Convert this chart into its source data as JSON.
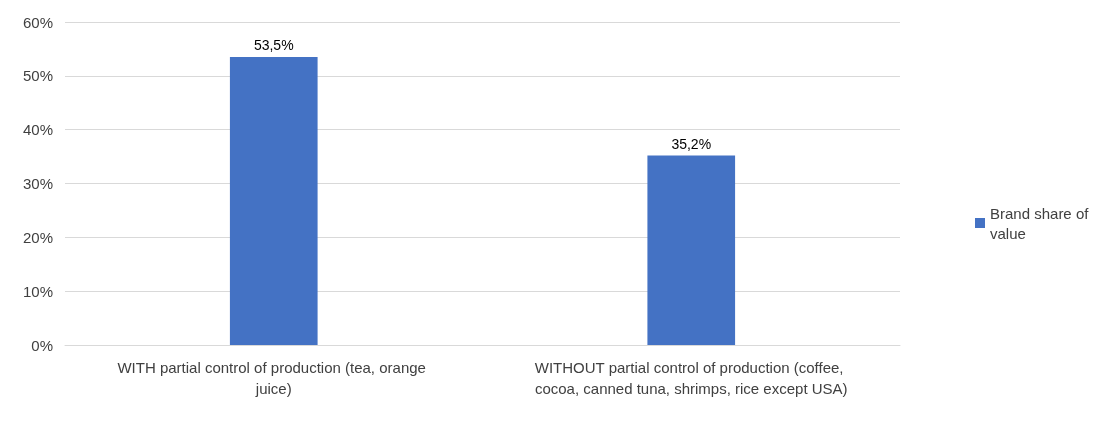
{
  "chart_data": {
    "type": "bar",
    "categories": [
      "WITH partial control of production (tea, orange juice)",
      "WITHOUT partial control of production (coffee, cocoa, canned tuna, shrimps, rice except USA)"
    ],
    "series": [
      {
        "name": "Brand share of value",
        "color": "#4472c4",
        "values": [
          53.5,
          35.2
        ],
        "value_labels": [
          "53,5%",
          "35,2%"
        ]
      }
    ],
    "ylim": [
      0,
      60
    ],
    "yticks": [
      {
        "value": 0,
        "label": "0%"
      },
      {
        "value": 10,
        "label": "10%"
      },
      {
        "value": 20,
        "label": "20%"
      },
      {
        "value": 30,
        "label": "30%"
      },
      {
        "value": 40,
        "label": "40%"
      },
      {
        "value": 50,
        "label": "50%"
      },
      {
        "value": 60,
        "label": "60%"
      }
    ],
    "grid": "y",
    "legend": "right"
  }
}
